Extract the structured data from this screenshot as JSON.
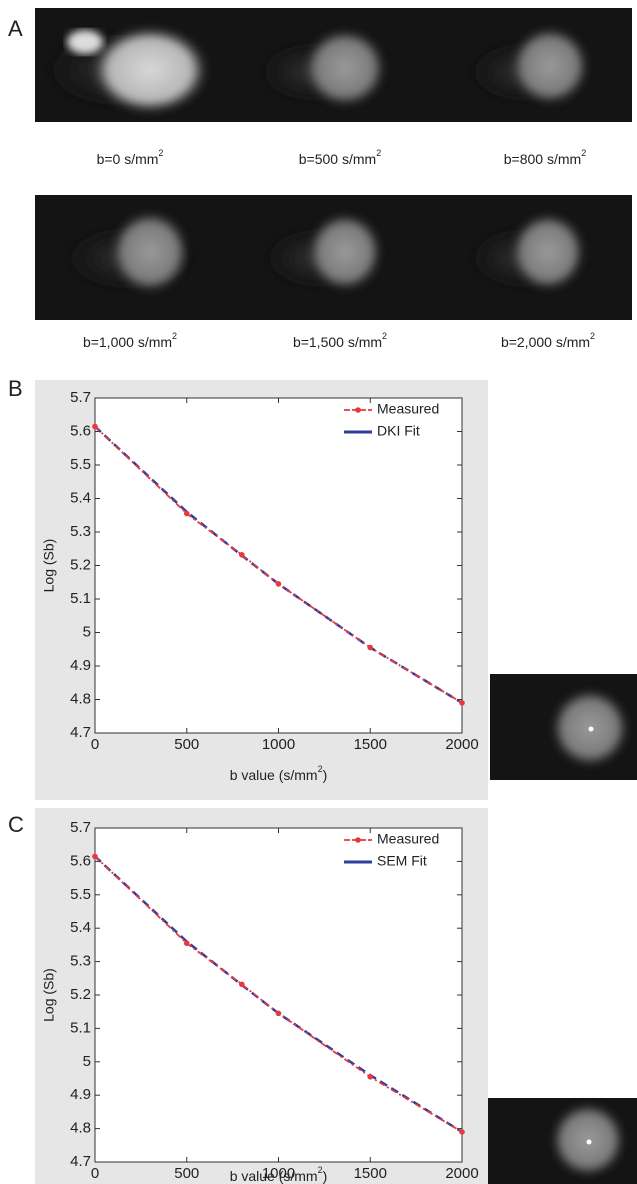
{
  "panels": [
    "A",
    "B",
    "C"
  ],
  "captions": [
    {
      "text": "b=0 s/mm",
      "sup": "2"
    },
    {
      "text": "b=500 s/mm",
      "sup": "2"
    },
    {
      "text": "b=800 s/mm",
      "sup": "2"
    },
    {
      "text": "b=1,000 s/mm",
      "sup": "2"
    },
    {
      "text": "b=1,500 s/mm",
      "sup": "2"
    },
    {
      "text": "b=2,000 s/mm",
      "sup": "2"
    }
  ],
  "chart_data": [
    {
      "type": "line",
      "ylabel": "Log (Sb)",
      "xlabel": [
        "b value (s/mm",
        "2",
        ")"
      ],
      "x": [
        0,
        500,
        800,
        1000,
        1500,
        2000
      ],
      "series": [
        {
          "name": "Measured",
          "color": "#e8383d",
          "values": [
            5.615,
            5.355,
            5.232,
            5.145,
            4.955,
            4.79
          ]
        },
        {
          "name": "DKI Fit",
          "color": "#2b3f9e",
          "values": [
            5.615,
            5.36,
            5.23,
            5.145,
            4.955,
            4.79
          ]
        }
      ],
      "xlim": [
        0,
        2000
      ],
      "xticks": [
        0,
        500,
        1000,
        1500,
        2000
      ],
      "ylim": [
        4.7,
        5.7
      ],
      "yticks": [
        4.7,
        4.8,
        4.9,
        5,
        5.1,
        5.2,
        5.3,
        5.4,
        5.5,
        5.6,
        5.7
      ],
      "legend": "upper right"
    },
    {
      "type": "line",
      "ylabel": "Log (Sb)",
      "xlabel": [
        "b value (s/mm",
        "2",
        ")"
      ],
      "x": [
        0,
        500,
        800,
        1000,
        1500,
        2000
      ],
      "series": [
        {
          "name": "Measured",
          "color": "#e8383d",
          "values": [
            5.615,
            5.355,
            5.232,
            5.145,
            4.955,
            4.79
          ]
        },
        {
          "name": "SEM Fit",
          "color": "#2b3f9e",
          "values": [
            5.615,
            5.36,
            5.23,
            5.145,
            4.96,
            4.79
          ]
        }
      ],
      "xlim": [
        0,
        2000
      ],
      "xticks": [
        0,
        500,
        1000,
        1500,
        2000
      ],
      "ylim": [
        4.7,
        5.7
      ],
      "yticks": [
        4.7,
        4.8,
        4.9,
        5,
        5.1,
        5.2,
        5.3,
        5.4,
        5.5,
        5.6,
        5.7
      ],
      "legend": "upper right"
    }
  ]
}
